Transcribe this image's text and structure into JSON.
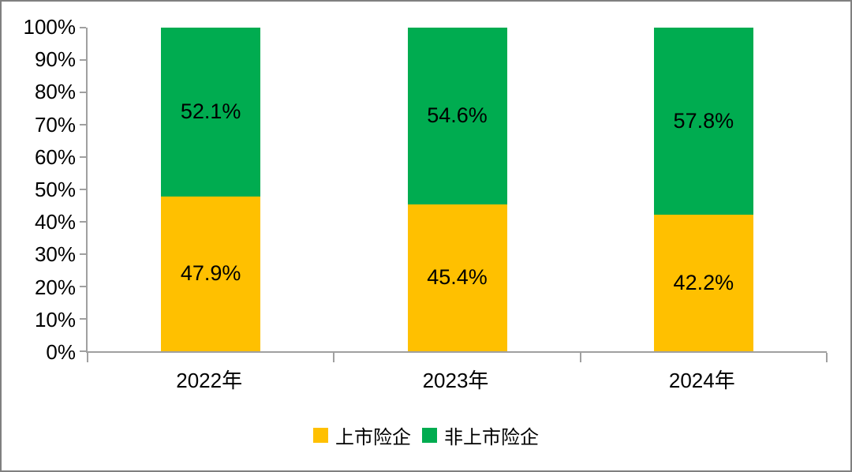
{
  "chart_data": {
    "type": "bar",
    "variant": "100-percent-stacked-column",
    "categories": [
      "2022年",
      "2023年",
      "2024年"
    ],
    "series": [
      {
        "name": "上市险企",
        "color": "#FFC000",
        "values": [
          47.9,
          45.4,
          42.2
        ],
        "labels": [
          "47.9%",
          "45.4%",
          "42.2%"
        ]
      },
      {
        "name": "非上市险企",
        "color": "#00AC50",
        "values": [
          52.1,
          54.6,
          57.8
        ],
        "labels": [
          "52.1%",
          "54.6%",
          "57.8%"
        ]
      }
    ],
    "y_axis": {
      "min": 0,
      "max": 100,
      "ticks": [
        "100%",
        "90%",
        "80%",
        "70%",
        "60%",
        "50%",
        "40%",
        "30%",
        "20%",
        "10%",
        "0%"
      ],
      "tick_order": "top-to-bottom"
    },
    "gridlines": false,
    "legend_position": "bottom",
    "colors": {
      "axis": "#A0A0A0",
      "text": "#000000",
      "frame_border": "#808080",
      "background": "#FFFFFF"
    }
  }
}
